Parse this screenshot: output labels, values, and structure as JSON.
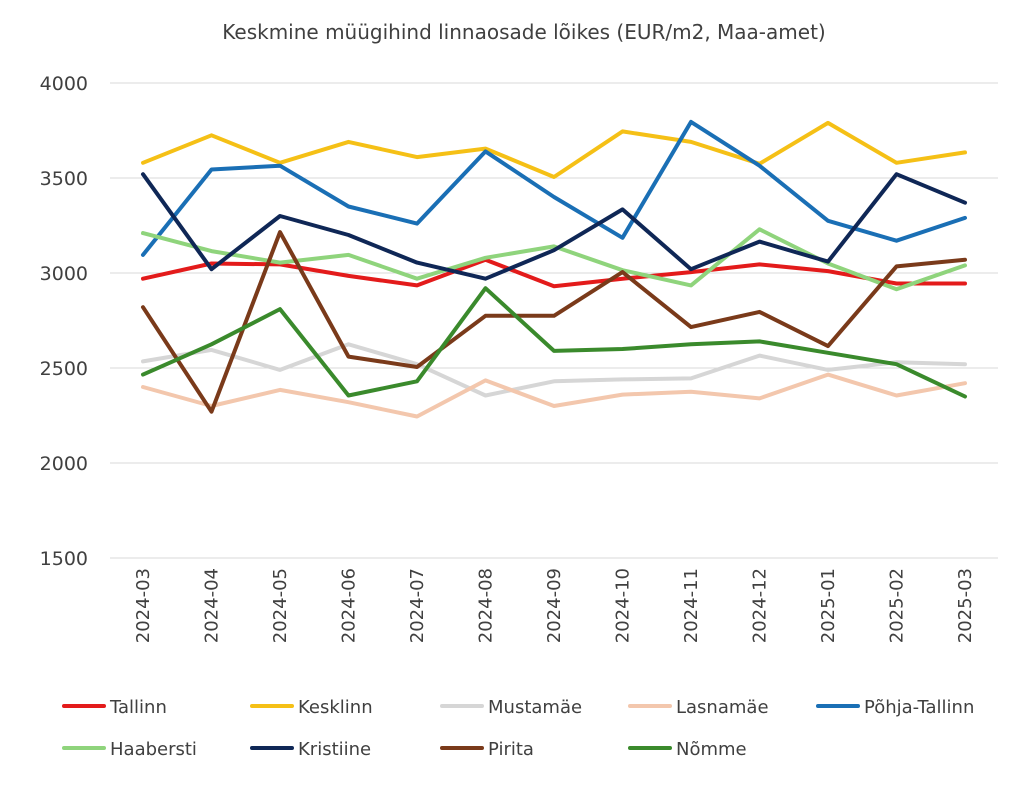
{
  "chart_data": {
    "type": "line",
    "title": "Keskmine müügihind linnaosade lõikes (EUR/m2, Maa-amet)",
    "xlabel": "",
    "ylabel": "",
    "ylim": [
      1500,
      4000
    ],
    "yticks": [
      "1500",
      "2000",
      "2500",
      "3000",
      "3500",
      "4000"
    ],
    "grid": true,
    "legend_position": "bottom",
    "categories": [
      "2024-03",
      "2024-04",
      "2024-05",
      "2024-06",
      "2024-07",
      "2024-08",
      "2024-09",
      "2024-10",
      "2024-11",
      "2024-12",
      "2025-01",
      "2025-02",
      "2025-03"
    ],
    "series": [
      {
        "name": "Tallinn",
        "color": "#e31b1b",
        "values": [
          2970,
          3050,
          3045,
          2985,
          2935,
          3070,
          2930,
          2970,
          3005,
          3045,
          3010,
          2945,
          2945
        ]
      },
      {
        "name": "Kesklinn",
        "color": "#f5c016",
        "values": [
          3580,
          3725,
          3580,
          3690,
          3610,
          3655,
          3505,
          3745,
          3690,
          3575,
          3790,
          3580,
          3635
        ]
      },
      {
        "name": "Mustamäe",
        "color": "#d6d6d6",
        "values": [
          2535,
          2595,
          2490,
          2625,
          2520,
          2355,
          2430,
          2440,
          2445,
          2565,
          2490,
          2530,
          2520
        ]
      },
      {
        "name": "Lasnamäe",
        "color": "#f3c7ad",
        "values": [
          2400,
          2300,
          2385,
          2320,
          2245,
          2435,
          2300,
          2360,
          2375,
          2340,
          2465,
          2355,
          2420
        ]
      },
      {
        "name": "Põhja-Tallinn",
        "color": "#1a6fb5",
        "values": [
          3095,
          3545,
          3565,
          3350,
          3260,
          3640,
          3400,
          3185,
          3795,
          3565,
          3275,
          3170,
          3290
        ]
      },
      {
        "name": "Haabersti",
        "color": "#8fd47c",
        "values": [
          3210,
          3115,
          3055,
          3095,
          2970,
          3080,
          3140,
          3015,
          2935,
          3230,
          3050,
          2915,
          3040
        ]
      },
      {
        "name": "Kristiine",
        "color": "#0f2756",
        "values": [
          3520,
          3020,
          3300,
          3200,
          3055,
          2970,
          3120,
          3335,
          3020,
          3165,
          3060,
          3520,
          3370
        ]
      },
      {
        "name": "Pirita",
        "color": "#7a3a1a",
        "values": [
          2820,
          2270,
          3215,
          2560,
          2505,
          2775,
          2775,
          3005,
          2715,
          2795,
          2615,
          3035,
          3070
        ]
      },
      {
        "name": "Nõmme",
        "color": "#3a8a2c",
        "values": [
          2465,
          2625,
          2810,
          2355,
          2430,
          2920,
          2590,
          2600,
          2625,
          2640,
          2580,
          2520,
          2350
        ]
      }
    ]
  }
}
